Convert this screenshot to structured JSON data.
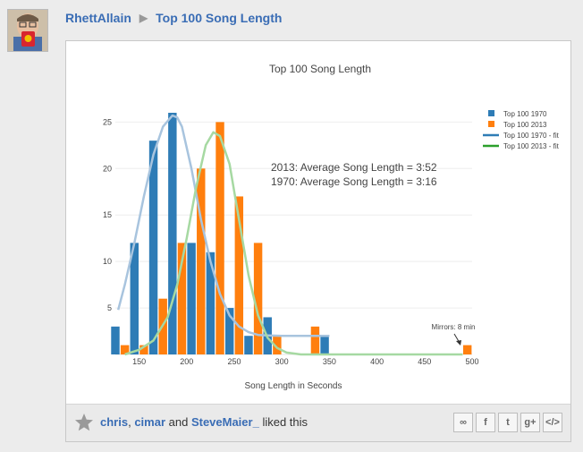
{
  "breadcrumb": {
    "user": "RhettAllain",
    "separator": "▶",
    "title": "Top 100 Song Length"
  },
  "footer": {
    "users": [
      "chris",
      "cimar",
      "SteveMaier_"
    ],
    "comma": ", ",
    "and_text": " and ",
    "liked_text": " liked this",
    "share_buttons": [
      "link-icon",
      "facebook-icon",
      "twitter-icon",
      "google-plus-icon",
      "embed-icon"
    ],
    "share_glyphs": [
      "∞",
      "f",
      "t",
      "g+",
      "</>"
    ]
  },
  "chart_data": {
    "type": "bar",
    "title": "Top 100 Song Length",
    "xlabel": "Song Length in Seconds",
    "ylabel": "",
    "xlim": [
      125,
      500
    ],
    "ylim": [
      0,
      26
    ],
    "xticks": [
      150,
      200,
      250,
      300,
      350,
      400,
      450,
      500
    ],
    "yticks": [
      5,
      10,
      15,
      20,
      25
    ],
    "bin_width": 20,
    "bins": [
      130,
      150,
      170,
      190,
      210,
      230,
      250,
      270,
      290,
      310,
      330,
      350,
      490
    ],
    "series": [
      {
        "name": "Top 100 1970",
        "color": "#2e7cb6",
        "values": [
          3,
          12,
          23,
          26,
          12,
          11,
          5,
          2,
          4,
          0,
          0,
          2,
          0
        ]
      },
      {
        "name": "Top 100 2013",
        "color": "#ff7f0e",
        "values": [
          1,
          1,
          6,
          12,
          20,
          25,
          17,
          12,
          2,
          0,
          3,
          0,
          1
        ]
      }
    ],
    "fits": [
      {
        "name": "Top 100 1970 - fit",
        "color": "#a8c4de",
        "x": [
          128,
          135,
          145,
          155,
          165,
          175,
          185,
          190,
          195,
          205,
          215,
          225,
          235,
          245,
          255,
          265,
          275,
          285,
          300,
          350
        ],
        "y": [
          4.8,
          7.5,
          12,
          17,
          21.5,
          24.5,
          25.7,
          25.5,
          24.5,
          20,
          14.5,
          10,
          6.5,
          4.2,
          3,
          2.4,
          2.1,
          2.05,
          2,
          2
        ]
      },
      {
        "name": "Top 100 2013 - fit",
        "color": "#a6d9a2",
        "x": [
          135,
          150,
          165,
          180,
          190,
          200,
          210,
          220,
          228,
          235,
          245,
          255,
          265,
          275,
          285,
          295,
          305,
          320,
          340,
          400,
          480,
          490
        ],
        "y": [
          0,
          0.5,
          1.5,
          4,
          7.5,
          12.5,
          18,
          22.5,
          23.9,
          23.5,
          20.5,
          14.5,
          8.5,
          4.2,
          1.8,
          0.7,
          0.2,
          0,
          0,
          0,
          0,
          0
        ]
      }
    ],
    "annotations": [
      "2013: Average Song Length = 3:52",
      "1970: Average Song Length = 3:16",
      "Mirrors: 8 min"
    ],
    "legend": "top-right",
    "grid": true
  }
}
